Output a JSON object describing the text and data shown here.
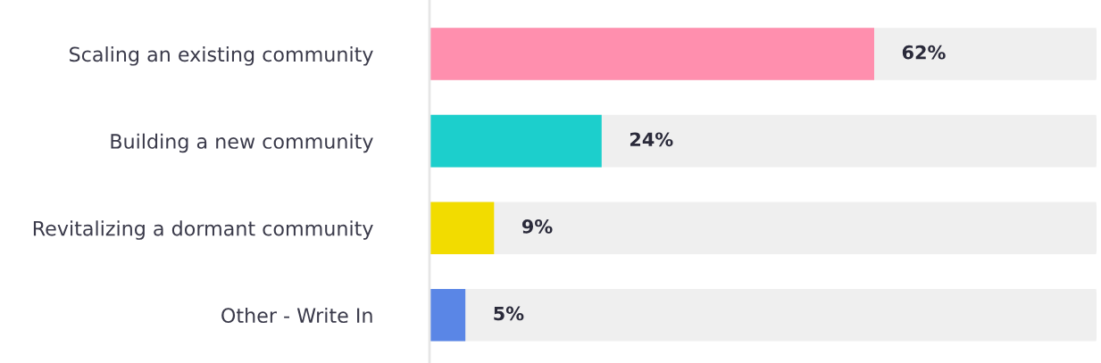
{
  "chart_data": {
    "type": "bar",
    "orientation": "horizontal",
    "data_labels": true,
    "tick_labels": "y",
    "categories": [
      "Scaling an existing community",
      "Building a new community",
      "Revitalizing a dormant community",
      "Other - Write In"
    ],
    "values": [
      62,
      24,
      9,
      5
    ],
    "value_labels": [
      "62%",
      "24%",
      "9%",
      "5%"
    ],
    "colors": [
      "#ff8fae",
      "#1ccfcc",
      "#f2dc00",
      "#5a86e6"
    ],
    "grid": false,
    "legend": false
  }
}
